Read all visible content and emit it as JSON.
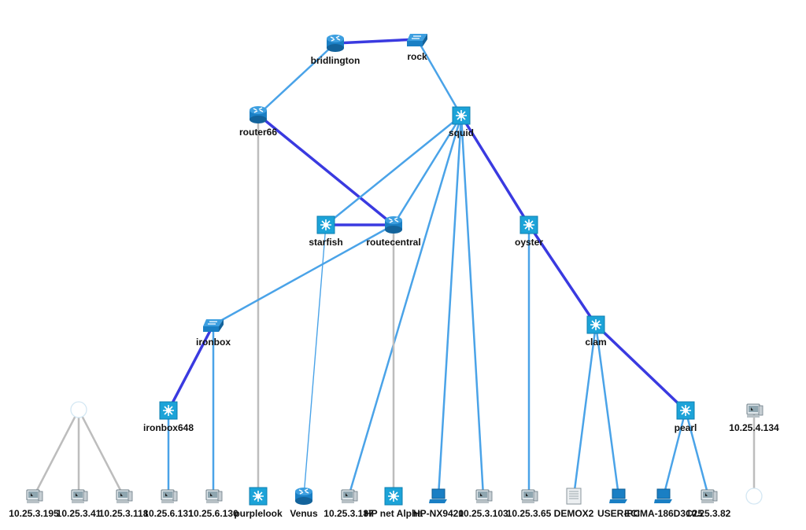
{
  "colors": {
    "link_standard": "#4aa3e8",
    "link_thick": "#3a3ae0",
    "link_gray": "#bdbdbd",
    "router": "#1a7fc4",
    "switch": "#1ca3d8",
    "pc_screen": "#8fa6b0"
  },
  "nodes": [
    {
      "id": "bridlington",
      "label": "bridlington",
      "icon": "router-icon"
    },
    {
      "id": "rock",
      "label": "rock",
      "icon": "switch-stack-icon"
    },
    {
      "id": "router66",
      "label": "router66",
      "icon": "router-icon"
    },
    {
      "id": "squid",
      "label": "squid",
      "icon": "l3-switch-icon"
    },
    {
      "id": "starfish",
      "label": "starfish",
      "icon": "l3-switch-icon"
    },
    {
      "id": "routecentral",
      "label": "routecentral",
      "icon": "router-icon"
    },
    {
      "id": "oyster",
      "label": "oyster",
      "icon": "l3-switch-icon"
    },
    {
      "id": "ironbox",
      "label": "ironbox",
      "icon": "switch-stack-icon"
    },
    {
      "id": "clam",
      "label": "clam",
      "icon": "l3-switch-icon"
    },
    {
      "id": "ironbox648",
      "label": "ironbox648",
      "icon": "l3-switch-icon"
    },
    {
      "id": "pearl",
      "label": "pearl",
      "icon": "l3-switch-icon"
    },
    {
      "id": "cloud1",
      "label": "",
      "icon": "cloud-icon"
    },
    {
      "id": "h4134",
      "label": "10.25.4.134",
      "icon": "workstation-icon"
    },
    {
      "id": "h3195",
      "label": "10.25.3.195",
      "icon": "workstation-icon"
    },
    {
      "id": "h341",
      "label": "10.25.3.41",
      "icon": "workstation-icon"
    },
    {
      "id": "h3118",
      "label": "10.25.3.118",
      "icon": "workstation-icon"
    },
    {
      "id": "h6131",
      "label": "10.25.6.131",
      "icon": "workstation-icon"
    },
    {
      "id": "h6130",
      "label": "10.25.6.130",
      "icon": "workstation-icon"
    },
    {
      "id": "purplelook",
      "label": "purplelook",
      "icon": "l3-switch-icon"
    },
    {
      "id": "venus",
      "label": "Venus",
      "icon": "router-icon"
    },
    {
      "id": "h3187",
      "label": "10.25.3.187",
      "icon": "workstation-icon"
    },
    {
      "id": "hpalpha",
      "label": "HP net Alpha",
      "icon": "l3-switch-icon"
    },
    {
      "id": "hpnx",
      "label": "HP-NX9420",
      "icon": "laptop-icon"
    },
    {
      "id": "h3103",
      "label": "10.25.3.103",
      "icon": "workstation-icon"
    },
    {
      "id": "h365",
      "label": "10.25.3.65",
      "icon": "workstation-icon"
    },
    {
      "id": "demox2",
      "label": "DEMOX2",
      "icon": "server-icon"
    },
    {
      "id": "userpc",
      "label": "USER-PC",
      "icon": "laptop-icon"
    },
    {
      "id": "ecima",
      "label": "ECIMA-186D3C25",
      "icon": "laptop-icon"
    },
    {
      "id": "h382",
      "label": "10.25.3.82",
      "icon": "workstation-icon"
    },
    {
      "id": "cloud2",
      "label": "",
      "icon": "cloud-icon"
    }
  ],
  "links": [
    {
      "from": "bridlington",
      "to": "rock",
      "style": "thick"
    },
    {
      "from": "bridlington",
      "to": "router66",
      "style": "standard"
    },
    {
      "from": "rock",
      "to": "squid",
      "style": "standard"
    },
    {
      "from": "router66",
      "to": "routecentral",
      "style": "thick"
    },
    {
      "from": "router66",
      "to": "purplelook",
      "style": "gray"
    },
    {
      "from": "squid",
      "to": "starfish",
      "style": "standard"
    },
    {
      "from": "squid",
      "to": "routecentral",
      "style": "standard"
    },
    {
      "from": "squid",
      "to": "oyster",
      "style": "thick"
    },
    {
      "from": "squid",
      "to": "hpnx",
      "style": "standard"
    },
    {
      "from": "squid",
      "to": "h3103",
      "style": "standard"
    },
    {
      "from": "squid",
      "to": "h3187",
      "style": "standard"
    },
    {
      "from": "starfish",
      "to": "routecentral",
      "style": "thick"
    },
    {
      "from": "starfish",
      "to": "venus",
      "style": "thin"
    },
    {
      "from": "routecentral",
      "to": "ironbox",
      "style": "standard"
    },
    {
      "from": "routecentral",
      "to": "hpalpha",
      "style": "gray"
    },
    {
      "from": "oyster",
      "to": "clam",
      "style": "thick"
    },
    {
      "from": "oyster",
      "to": "h365",
      "style": "standard"
    },
    {
      "from": "ironbox",
      "to": "ironbox648",
      "style": "thick"
    },
    {
      "from": "ironbox",
      "to": "h6130",
      "style": "standard"
    },
    {
      "from": "ironbox648",
      "to": "h6131",
      "style": "standard"
    },
    {
      "from": "clam",
      "to": "pearl",
      "style": "thick"
    },
    {
      "from": "clam",
      "to": "demox2",
      "style": "standard"
    },
    {
      "from": "clam",
      "to": "userpc",
      "style": "standard"
    },
    {
      "from": "pearl",
      "to": "ecima",
      "style": "standard"
    },
    {
      "from": "pearl",
      "to": "h382",
      "style": "standard"
    },
    {
      "from": "cloud1",
      "to": "h3195",
      "style": "gray"
    },
    {
      "from": "cloud1",
      "to": "h341",
      "style": "gray"
    },
    {
      "from": "cloud1",
      "to": "h3118",
      "style": "gray"
    },
    {
      "from": "h4134",
      "to": "cloud2",
      "style": "gray"
    }
  ]
}
